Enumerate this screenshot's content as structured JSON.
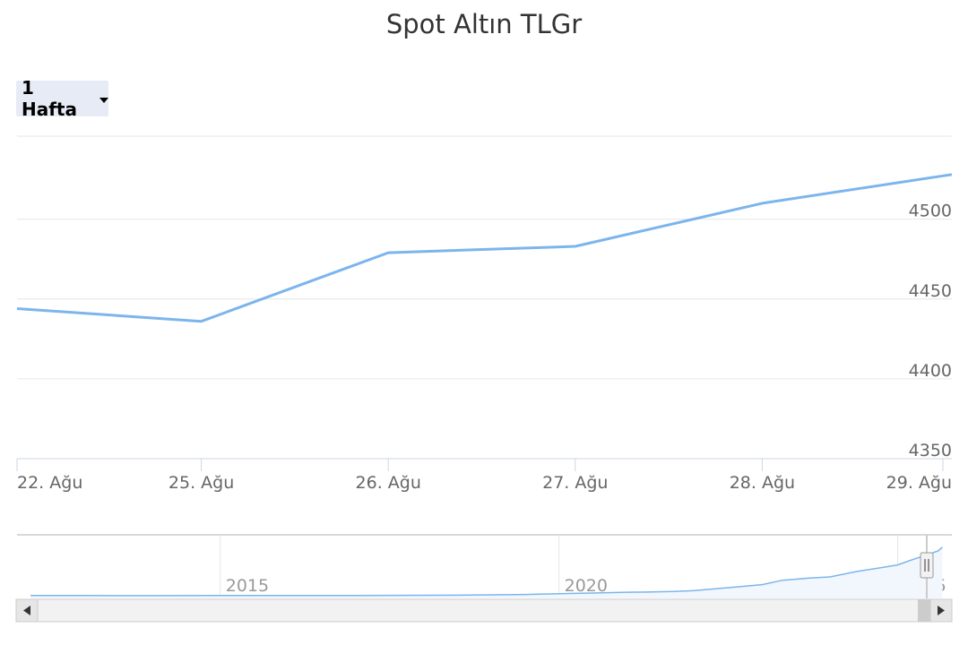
{
  "title": "Spot Altın TLGr",
  "range_selector": {
    "label": "1 Hafta"
  },
  "chart_data": {
    "type": "line",
    "title": "Spot Altın TLGr",
    "categories": [
      "22. Ağu",
      "25. Ağu",
      "26. Ağu",
      "27. Ağu",
      "28. Ağu",
      "29. Ağu"
    ],
    "values": [
      4444,
      4436,
      4479,
      4483,
      4510,
      4528
    ],
    "y_ticks": [
      4350,
      4400,
      4450,
      4500
    ],
    "ylim": [
      4350,
      4552
    ],
    "grid": true,
    "y_axis_side": "right",
    "line_color": "#7cb5ec",
    "navigator": {
      "x_ticks": [
        "2015",
        "2020",
        "2025"
      ],
      "x": [
        2012.2,
        2013,
        2014,
        2015,
        2016,
        2017,
        2018,
        2018.5,
        2019,
        2019.5,
        2020,
        2020.5,
        2021,
        2021.3,
        2021.7,
        2022,
        2022.5,
        2023,
        2023.3,
        2023.7,
        2024,
        2024.4,
        2024.8,
        2025,
        2025.25,
        2025.45,
        2025.6,
        2025.66
      ],
      "values": [
        95,
        95,
        94,
        95,
        100,
        105,
        120,
        130,
        160,
        200,
        260,
        330,
        400,
        420,
        470,
        560,
        820,
        1100,
        1500,
        1700,
        1800,
        2300,
        2700,
        2900,
        3450,
        3850,
        4200,
        4528
      ],
      "xlim": [
        2012,
        2025.8
      ],
      "ylim": [
        0,
        5000
      ]
    }
  },
  "colors": {
    "line": "#7cb5ec",
    "grid": "#e6e6e6",
    "axis_text": "#666666",
    "button_bg": "#e6ebf5",
    "navigator_fill": "#f2f7fd",
    "scrollbar_bg": "#f2f2f2",
    "scrollbar_thumb": "#cccccc"
  },
  "icons": {
    "dropdown": "caret-down-icon",
    "scroll_left": "arrow-left-icon",
    "scroll_right": "arrow-right-icon",
    "handle": "navigator-handle-icon"
  }
}
